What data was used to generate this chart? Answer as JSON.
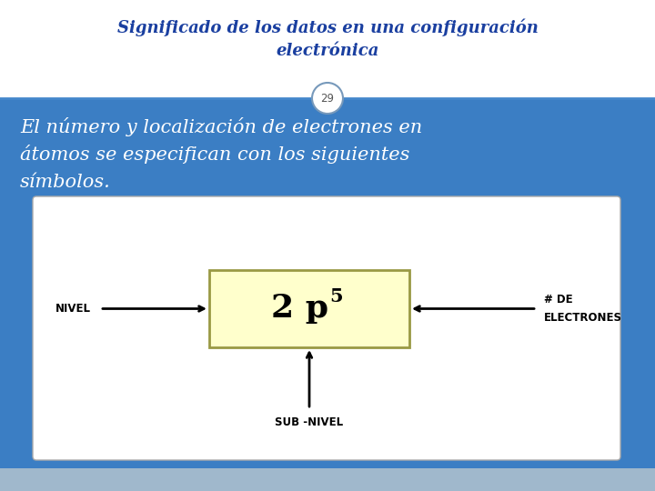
{
  "title_line1": "Significado de los datos en una configuración",
  "title_line2": "electrónica",
  "page_number": "29",
  "body_text_line1": "El número y localización de electrones en",
  "body_text_line2": "átomos se especifican con los siguientes",
  "body_text_line3": "símbolos.",
  "label_nivel": "NIVEL",
  "label_subnivel": "SUB -NIVEL",
  "label_electrones_1": "# DE",
  "label_electrones_2": "ELECTRONES",
  "bg_top_color": "#ffffff",
  "bg_bottom_color": "#3b7ec4",
  "box_fill_color": "#ffffcc",
  "box_edge_color": "#999944",
  "title_color": "#1a3fa0",
  "body_text_color": "#ffffff",
  "page_num_color": "#555555",
  "label_color": "#000000",
  "bottom_strip_color": "#a0b8cc",
  "divider_color": "#4488cc",
  "title_shadow_color": "#8899cc"
}
